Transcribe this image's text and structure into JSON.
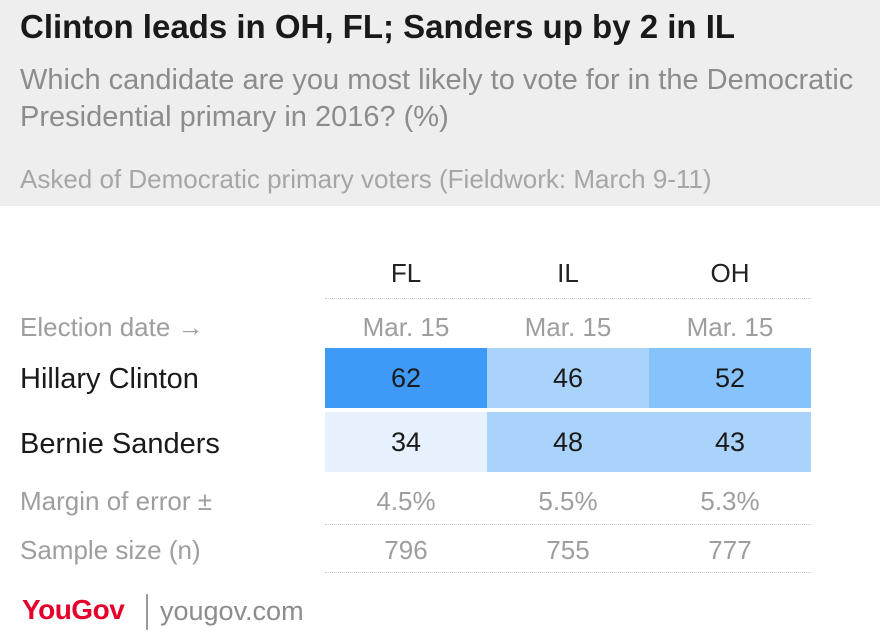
{
  "header": {
    "title": "Clinton leads in OH, FL; Sanders up by 2 in IL",
    "subtitle": "Which candidate are you most likely to vote for in the Democratic Presidential primary in 2016? (%)",
    "note": "Asked of Democratic primary voters (Fieldwork: March 9-11)"
  },
  "colors": {
    "header_bg": "#eeeeee",
    "heat_scale": [
      "#e6f1fd",
      "#a9d3fb",
      "#86c2fb",
      "#3e9af6"
    ]
  },
  "chart_data": {
    "type": "table",
    "columns": [
      "FL",
      "IL",
      "OH"
    ],
    "election_date": {
      "label": "Election date →",
      "values": [
        "Mar. 15",
        "Mar. 15",
        "Mar. 15"
      ]
    },
    "series": [
      {
        "name": "Hillary Clinton",
        "values": [
          62,
          46,
          52
        ]
      },
      {
        "name": "Bernie Sanders",
        "values": [
          34,
          48,
          43
        ]
      }
    ],
    "margin_of_error": {
      "label": "Margin of error ±",
      "values": [
        "4.5%",
        "5.5%",
        "5.3%"
      ]
    },
    "sample_size": {
      "label": "Sample size (n)",
      "values": [
        796,
        755,
        777
      ]
    }
  },
  "footer": {
    "logo": "YouGov",
    "site": "yougov.com"
  }
}
